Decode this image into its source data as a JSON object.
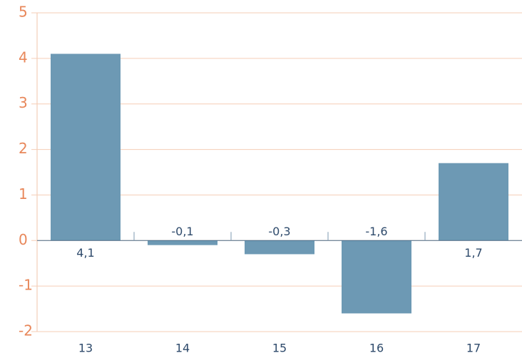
{
  "chart_data": {
    "type": "bar",
    "categories": [
      "13",
      "14",
      "15",
      "16",
      "17"
    ],
    "values": [
      4.1,
      -0.1,
      -0.3,
      -1.6,
      1.7
    ],
    "value_labels": [
      "4,1",
      "-0,1",
      "-0,3",
      "-1,6",
      "1,7"
    ],
    "color": "#6d99b4",
    "ylim": [
      -2,
      5
    ],
    "yticks": [
      -2,
      -1,
      0,
      1,
      2,
      3,
      4,
      5
    ],
    "grid": true
  }
}
